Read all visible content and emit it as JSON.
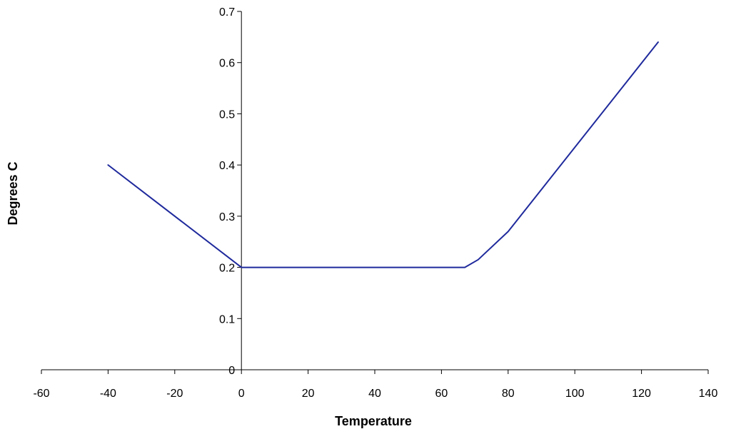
{
  "chart_data": {
    "type": "line",
    "title": "",
    "xlabel": "Temperature",
    "ylabel": "Degrees C",
    "xlim": [
      -60,
      140
    ],
    "ylim": [
      0,
      0.7
    ],
    "xticks": [
      -60,
      -40,
      -20,
      0,
      20,
      40,
      60,
      80,
      100,
      120,
      140
    ],
    "yticks": [
      0,
      0.1,
      0.2,
      0.3,
      0.4,
      0.5,
      0.6,
      0.7
    ],
    "xtick_labels": [
      "-60",
      "-40",
      "-20",
      "0",
      "20",
      "40",
      "60",
      "80",
      "100",
      "120",
      "140"
    ],
    "ytick_labels": [
      "0",
      "0.1",
      "0.2",
      "0.3",
      "0.4",
      "0.5",
      "0.6",
      "0.7"
    ],
    "grid": false,
    "legend": "none",
    "series": [
      {
        "color": "#1f2a9c",
        "x": [
          -40,
          0,
          67,
          71,
          80,
          125
        ],
        "y": [
          0.4,
          0.2,
          0.2,
          0.215,
          0.27,
          0.64
        ]
      }
    ]
  }
}
